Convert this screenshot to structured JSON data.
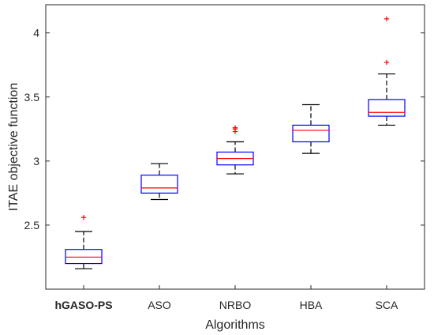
{
  "chart_data": {
    "type": "box",
    "xlabel": "Algorithms",
    "ylabel": "ITAE objective function",
    "ylim": [
      2.0,
      4.22
    ],
    "yticks": [
      2.5,
      3,
      3.5,
      4
    ],
    "ytick_labels": [
      "2.5",
      "3",
      "3.5",
      "4"
    ],
    "grid": false,
    "categories": [
      "hGASO-PS",
      "ASO",
      "NRBO",
      "HBA",
      "SCA"
    ],
    "boxes": [
      {
        "category": "hGASO-PS",
        "bold": true,
        "whisker_low": 2.16,
        "q1": 2.2,
        "median": 2.25,
        "q3": 2.31,
        "whisker_high": 2.45,
        "outliers": [
          2.56
        ]
      },
      {
        "category": "ASO",
        "whisker_low": 2.7,
        "q1": 2.75,
        "median": 2.79,
        "q3": 2.89,
        "whisker_high": 2.98,
        "outliers": []
      },
      {
        "category": "NRBO",
        "whisker_low": 2.9,
        "q1": 2.97,
        "median": 3.02,
        "q3": 3.07,
        "whisker_high": 3.15,
        "outliers": [
          3.23,
          3.25,
          3.26
        ]
      },
      {
        "category": "HBA",
        "whisker_low": 3.06,
        "q1": 3.15,
        "median": 3.24,
        "q3": 3.28,
        "whisker_high": 3.44,
        "outliers": []
      },
      {
        "category": "SCA",
        "whisker_low": 3.28,
        "q1": 3.35,
        "median": 3.38,
        "q3": 3.48,
        "whisker_high": 3.68,
        "outliers": [
          3.77,
          4.11
        ]
      }
    ],
    "colors": {
      "box": "#0000ff",
      "median": "#ff0000",
      "whisker": "#000000",
      "outlier": "#ff0000",
      "axis": "#262626"
    }
  }
}
